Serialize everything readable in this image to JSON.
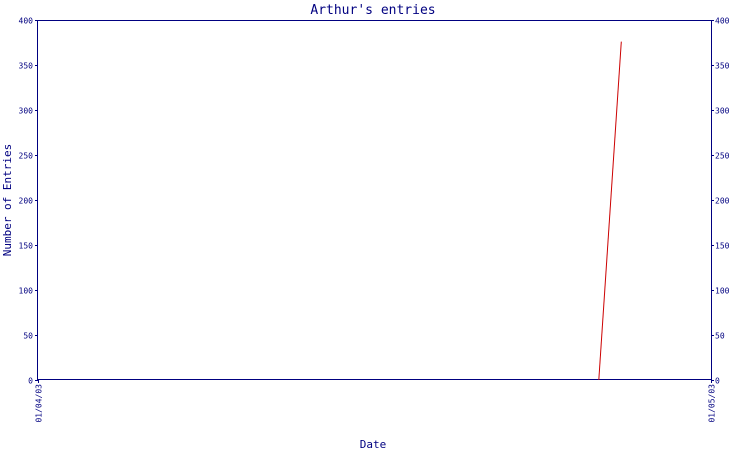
{
  "chart_data": {
    "type": "line",
    "title": "Arthur's entries",
    "xlabel": "Date",
    "ylabel": "Number of Entries",
    "ylim": [
      0,
      400
    ],
    "yticks": [
      0,
      50,
      100,
      150,
      200,
      250,
      300,
      350,
      400
    ],
    "right_axis": true,
    "grid": false,
    "x_tick_labels": [
      "01/04/03",
      "01/05/03"
    ],
    "series": [
      {
        "color": "#cc0000",
        "points": [
          {
            "x": "2003-04-26",
            "y": 0
          },
          {
            "x": "2003-04-27",
            "y": 376
          }
        ]
      }
    ]
  }
}
